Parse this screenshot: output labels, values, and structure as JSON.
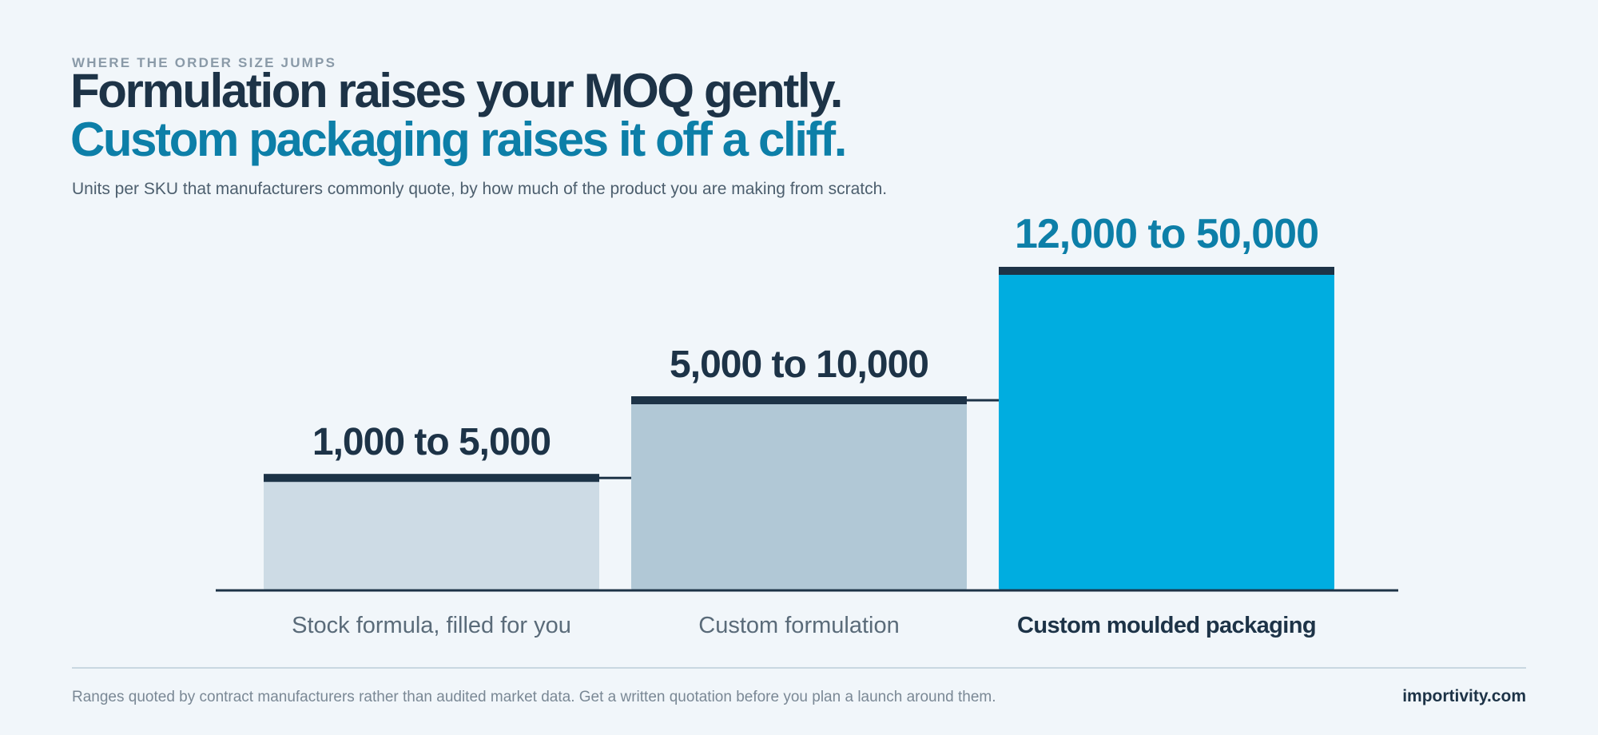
{
  "header": {
    "eyebrow": "WHERE THE ORDER SIZE JUMPS",
    "title_line1": "Formulation raises your MOQ gently.",
    "title_line2": "Custom packaging raises it off a cliff.",
    "subtitle": "Units per SKU that manufacturers commonly quote, by how much of the product you are making from scratch."
  },
  "chart_data": {
    "type": "bar",
    "categories": [
      "Stock formula, filled for you",
      "Custom formulation",
      "Custom moulded packaging"
    ],
    "value_labels": [
      "1,000 to 5,000",
      "5,000 to 10,000",
      "12,000 to 50,000"
    ],
    "ranges": [
      [
        1000,
        5000
      ],
      [
        5000,
        10000
      ],
      [
        12000,
        50000
      ]
    ],
    "bar_heights_relative": [
      0.36,
      0.6,
      1.0
    ],
    "highlight_index": 2,
    "colors": {
      "bars": [
        "#cddbe5",
        "#b1c8d6",
        "#00ade0"
      ],
      "bar_cap": "#1d3347",
      "baseline": "#1d3347",
      "label_default": "#1d3347",
      "label_highlight": "#0d7fa8",
      "category_default": "#5a6b79",
      "category_highlight": "#1d3347"
    }
  },
  "footer": {
    "note": "Ranges quoted by contract manufacturers rather than audited market data. Get a written quotation before you plan a launch around them.",
    "brand": "importivity.com"
  }
}
